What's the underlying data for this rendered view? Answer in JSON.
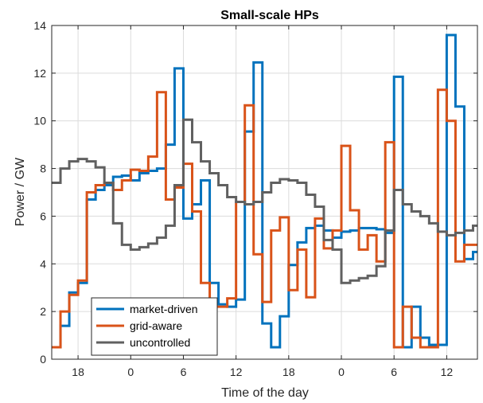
{
  "chart_data": {
    "type": "line",
    "step": true,
    "title": "Small-scale HPs",
    "xlabel": "Time of the day",
    "ylabel": "Power / GW",
    "ylim": [
      0,
      14
    ],
    "xlim": [
      15,
      63.5
    ],
    "x_ticks": [
      {
        "x": 18,
        "label": "18"
      },
      {
        "x": 24,
        "label": "0"
      },
      {
        "x": 30,
        "label": "6"
      },
      {
        "x": 36,
        "label": "12"
      },
      {
        "x": 42,
        "label": "18"
      },
      {
        "x": 48,
        "label": "0"
      },
      {
        "x": 54,
        "label": "6"
      },
      {
        "x": 60,
        "label": "12"
      }
    ],
    "y_ticks": [
      0,
      2,
      4,
      6,
      8,
      10,
      12,
      14
    ],
    "grid": true,
    "legend_position": "bottom-left",
    "x": [
      15,
      16,
      17,
      18,
      19,
      20,
      21,
      22,
      23,
      24,
      25,
      26,
      27,
      28,
      29,
      30,
      31,
      32,
      33,
      34,
      35,
      36,
      37,
      38,
      39,
      40,
      41,
      42,
      43,
      44,
      45,
      46,
      47,
      48,
      49,
      50,
      51,
      52,
      53,
      54,
      55,
      56,
      57,
      58,
      59,
      60,
      61,
      62,
      63
    ],
    "series": [
      {
        "name": "market-driven",
        "color": "#0072BD",
        "values": [
          0.5,
          1.4,
          2.8,
          3.2,
          6.7,
          7.1,
          7.3,
          7.65,
          7.7,
          7.5,
          7.8,
          7.9,
          8.0,
          9.0,
          12.2,
          5.9,
          6.5,
          7.5,
          3.2,
          2.3,
          2.2,
          2.5,
          9.55,
          12.45,
          1.5,
          0.5,
          1.8,
          3.95,
          4.9,
          5.5,
          5.6,
          5.4,
          5.1,
          5.35,
          5.4,
          5.5,
          5.5,
          5.45,
          5.3,
          11.85,
          0.5,
          2.2,
          0.9,
          0.6,
          0.6,
          13.6,
          10.6,
          4.2,
          4.5
        ]
      },
      {
        "name": "grid-aware",
        "color": "#D95319",
        "values": [
          0.5,
          2.0,
          2.7,
          3.3,
          7.0,
          7.3,
          7.4,
          7.1,
          7.5,
          7.95,
          7.9,
          8.5,
          11.2,
          6.7,
          7.2,
          8.2,
          6.2,
          3.2,
          2.2,
          2.2,
          2.55,
          6.6,
          10.65,
          4.4,
          2.4,
          5.4,
          5.95,
          2.9,
          4.6,
          2.6,
          5.9,
          4.65,
          5.4,
          8.95,
          6.25,
          4.6,
          5.2,
          4.1,
          9.1,
          0.5,
          2.2,
          0.9,
          0.5,
          0.5,
          11.3,
          10.0,
          4.1,
          4.8,
          4.8
        ]
      },
      {
        "name": "uncontrolled",
        "color": "#606060",
        "values": [
          7.4,
          8.0,
          8.3,
          8.4,
          8.3,
          8.05,
          7.4,
          5.7,
          4.8,
          4.6,
          4.7,
          4.85,
          5.1,
          5.6,
          7.3,
          10.05,
          9.1,
          8.3,
          7.8,
          7.3,
          6.8,
          6.6,
          6.5,
          6.6,
          7.0,
          7.4,
          7.55,
          7.5,
          7.4,
          6.9,
          6.4,
          5.0,
          4.6,
          3.2,
          3.3,
          3.4,
          3.5,
          3.9,
          5.4,
          7.1,
          6.5,
          6.2,
          6.0,
          5.7,
          5.35,
          5.2,
          5.3,
          5.4,
          5.6
        ]
      }
    ]
  }
}
